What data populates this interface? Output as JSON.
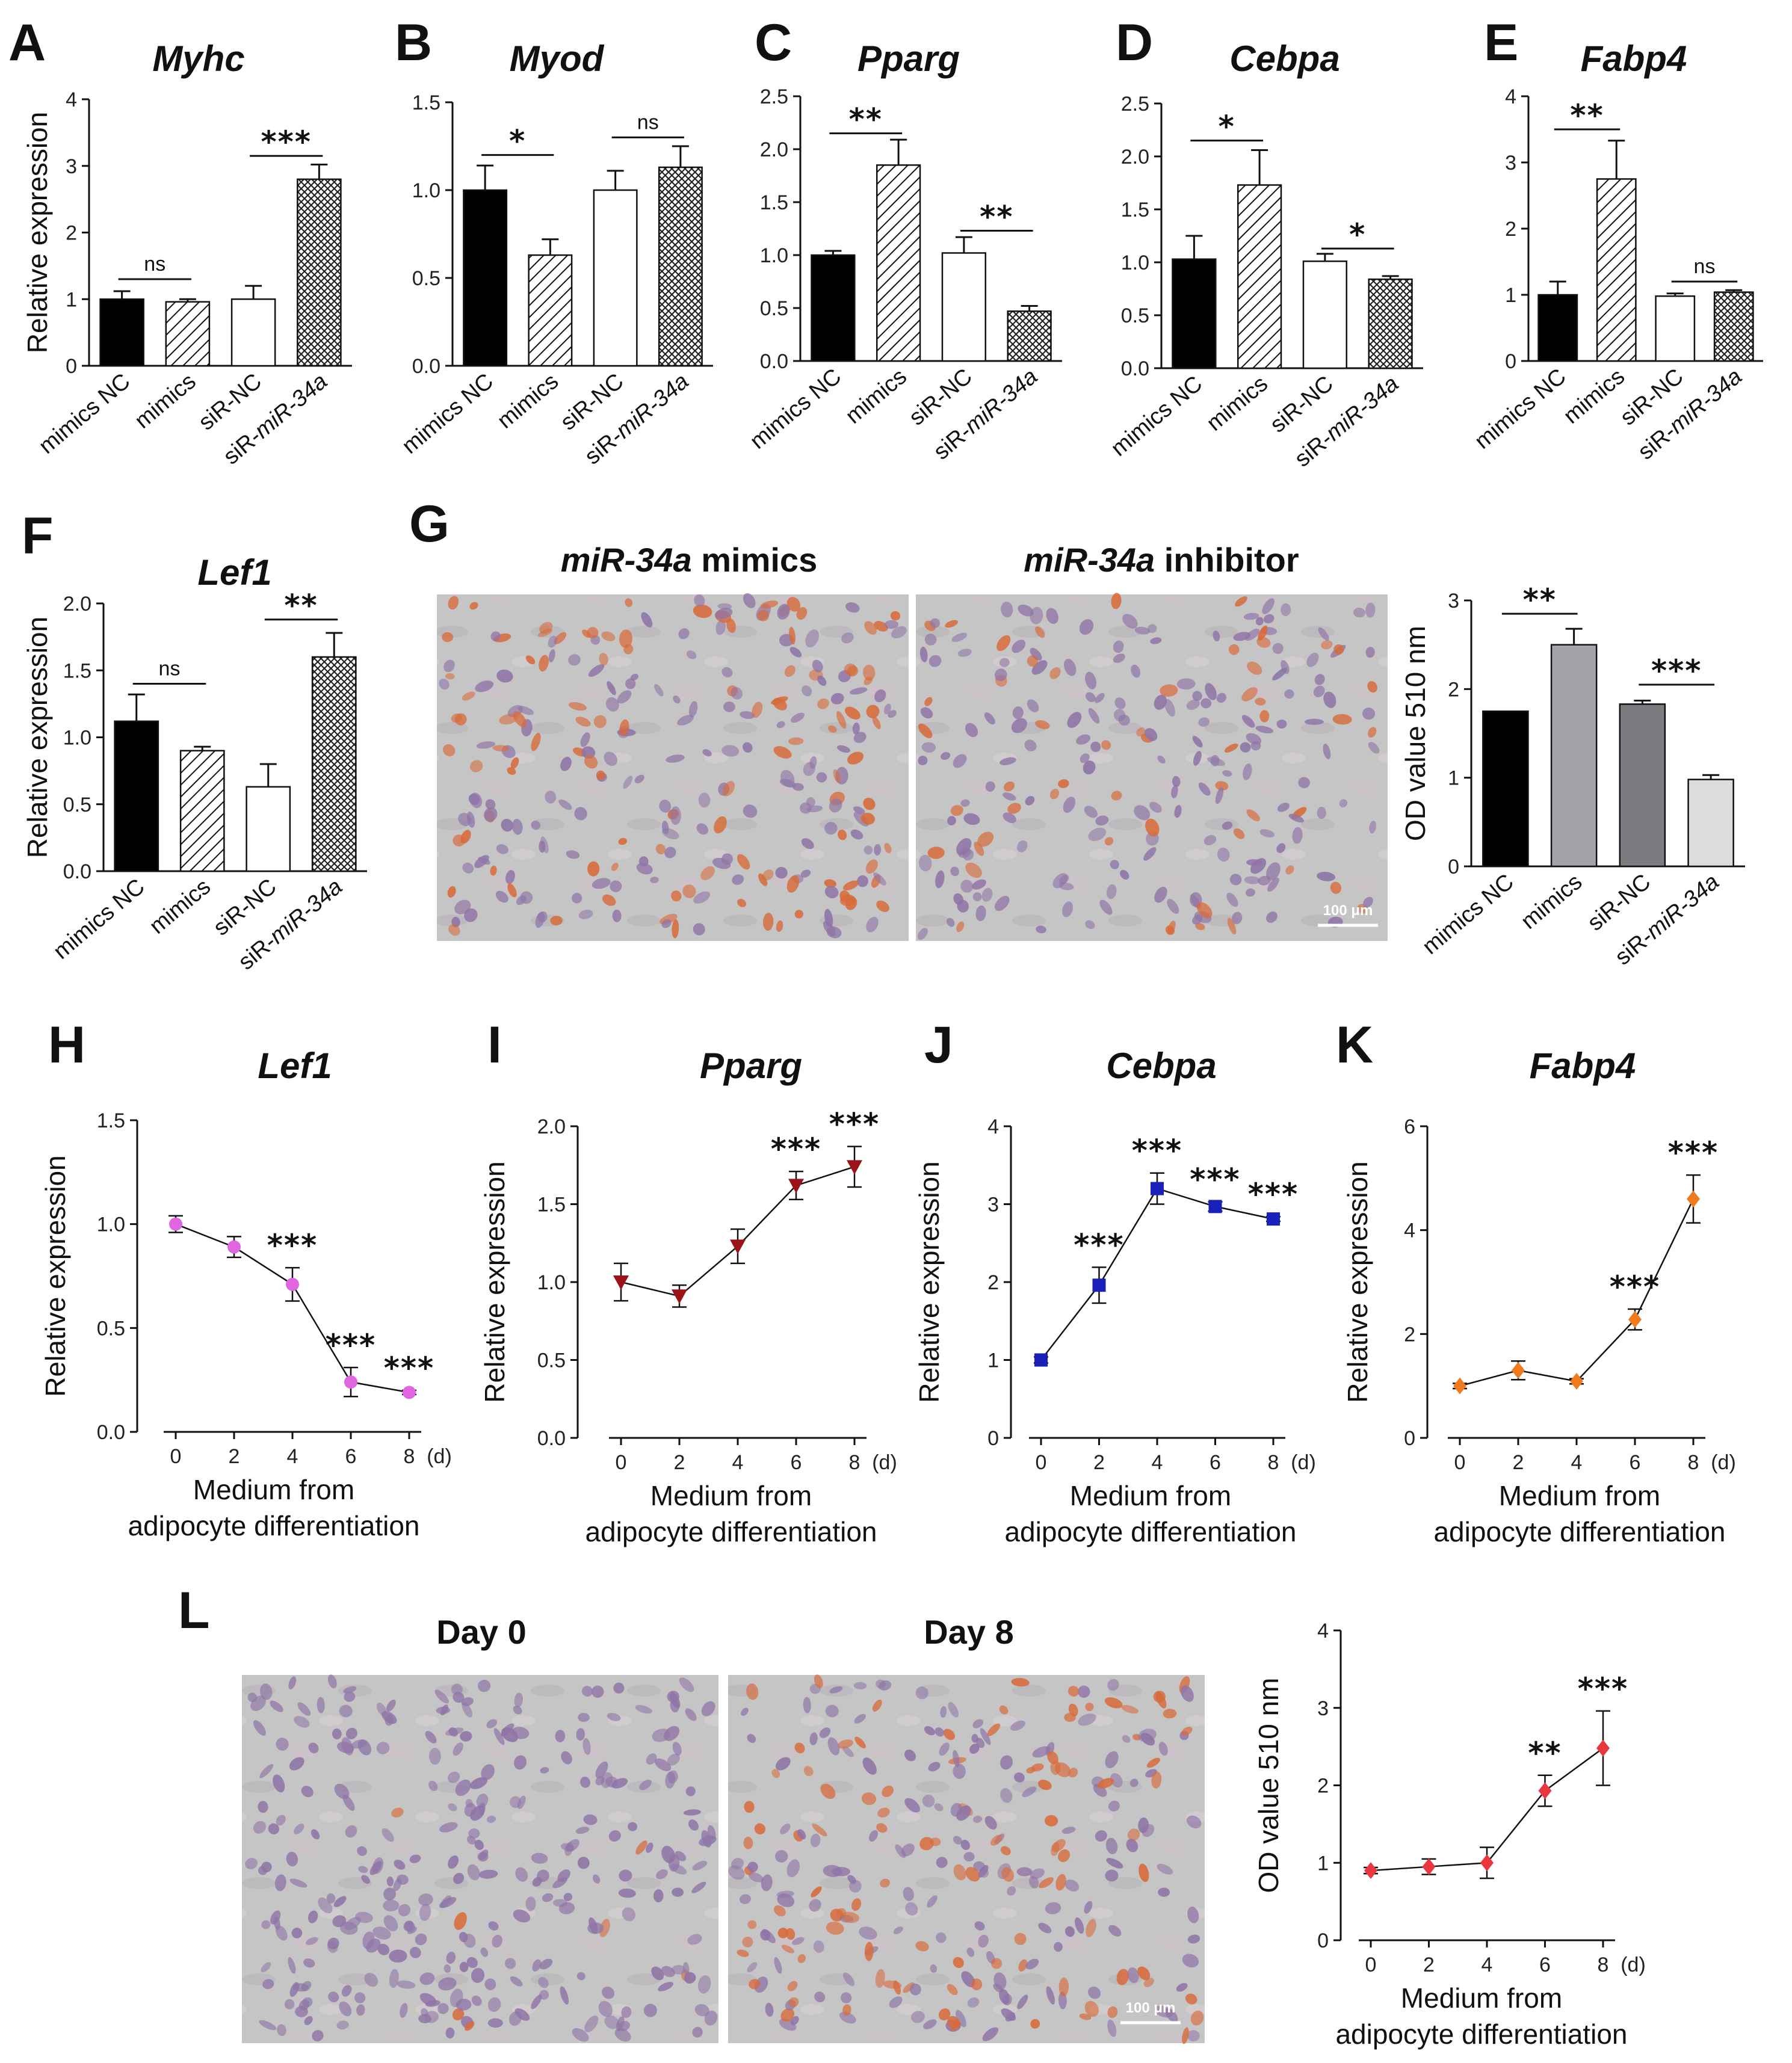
{
  "colors": {
    "bar_mimics_nc": "#000000",
    "bar_sirnc": "#ffffff",
    "od_mimics": "#a3a3aa",
    "od_sirnc": "#7c7c80",
    "od_sir34a": "#dcdcdc",
    "lef1_line": "#e066e0",
    "pparg_line": "#9b1218",
    "cebpa_line": "#1a21b8",
    "fabp4_line": "#f07a1e",
    "od_line": "#e8383d",
    "micro_bg": "#c9c9c9",
    "nuclei": "#8f74a6",
    "lipid": "#d86a3a"
  },
  "labels": {
    "ylabel_rel": "Relative expression",
    "ylabel_od": "OD value 510 nm",
    "xlabel_line1": "Medium from",
    "xlabel_line2": "adipocyte differentiation",
    "day_unit": "(d)",
    "scale_bar_g": "100 μm",
    "scale_bar_l": "100 μm"
  },
  "panels": {
    "A": {
      "letter": "A",
      "title": "Myhc"
    },
    "B": {
      "letter": "B",
      "title": "Myod"
    },
    "C": {
      "letter": "C",
      "title": "Pparg"
    },
    "D": {
      "letter": "D",
      "title": "Cebpa"
    },
    "E": {
      "letter": "E",
      "title": "Fabp4"
    },
    "F": {
      "letter": "F",
      "title": "Lef1"
    },
    "G": {
      "letter": "G",
      "img1_italic": "miR-34a",
      "img1_rest": " mimics",
      "img2_italic": "miR-34a",
      "img2_rest": " inhibitor"
    },
    "H": {
      "letter": "H",
      "title": "Lef1"
    },
    "I": {
      "letter": "I",
      "title": "Pparg"
    },
    "J": {
      "letter": "J",
      "title": "Cebpa"
    },
    "K": {
      "letter": "K",
      "title": "Fabp4"
    },
    "L": {
      "letter": "L",
      "img1": "Day 0",
      "img2": "Day 8"
    }
  },
  "chart_data": [
    {
      "id": "A",
      "type": "bar",
      "title": "Myhc",
      "ylabel": "Relative expression",
      "ylim": [
        0,
        4
      ],
      "yticks": [
        0,
        1,
        2,
        3,
        4
      ],
      "categories": [
        "mimics NC",
        "mimics",
        "siR-NC",
        "siR-miR-34a"
      ],
      "values": [
        1.0,
        0.96,
        1.0,
        2.8
      ],
      "errors": [
        0.12,
        0.04,
        0.2,
        0.22
      ],
      "annotations": [
        {
          "pair": [
            0,
            1
          ],
          "y": 1.3,
          "text": "ns"
        },
        {
          "pair": [
            2,
            3
          ],
          "y": 3.15,
          "text": "***"
        }
      ]
    },
    {
      "id": "B",
      "type": "bar",
      "title": "Myod",
      "ylabel": "",
      "ylim": [
        0,
        1.5
      ],
      "yticks": [
        "0.0",
        "0.5",
        "1.0",
        "1.5"
      ],
      "categories": [
        "mimics NC",
        "mimics",
        "siR-NC",
        "siR-miR-34a"
      ],
      "values": [
        1.0,
        0.63,
        1.0,
        1.13
      ],
      "errors": [
        0.14,
        0.09,
        0.11,
        0.12
      ],
      "annotations": [
        {
          "pair": [
            0,
            1
          ],
          "y": 1.2,
          "text": "*"
        },
        {
          "pair": [
            2,
            3
          ],
          "y": 1.3,
          "text": "ns"
        }
      ]
    },
    {
      "id": "C",
      "type": "bar",
      "title": "Pparg",
      "ylabel": "",
      "ylim": [
        0,
        2.5
      ],
      "yticks": [
        "0.0",
        "0.5",
        "1.0",
        "1.5",
        "2.0",
        "2.5"
      ],
      "categories": [
        "mimics NC",
        "mimics",
        "siR-NC",
        "siR-miR-34a"
      ],
      "values": [
        1.0,
        1.85,
        1.02,
        0.47
      ],
      "errors": [
        0.04,
        0.24,
        0.15,
        0.05
      ],
      "annotations": [
        {
          "pair": [
            0,
            1
          ],
          "y": 2.15,
          "text": "**"
        },
        {
          "pair": [
            2,
            3
          ],
          "y": 1.23,
          "text": "**"
        }
      ]
    },
    {
      "id": "D",
      "type": "bar",
      "title": "Cebpa",
      "ylabel": "",
      "ylim": [
        0,
        2.5
      ],
      "yticks": [
        "0.0",
        "0.5",
        "1.0",
        "1.5",
        "2.0",
        "2.5"
      ],
      "categories": [
        "mimics NC",
        "mimics",
        "siR-NC",
        "siR-miR-34a"
      ],
      "values": [
        1.03,
        1.73,
        1.01,
        0.84
      ],
      "errors": [
        0.22,
        0.33,
        0.07,
        0.03
      ],
      "annotations": [
        {
          "pair": [
            0,
            1
          ],
          "y": 2.15,
          "text": "*"
        },
        {
          "pair": [
            2,
            3
          ],
          "y": 1.13,
          "text": "*"
        }
      ]
    },
    {
      "id": "E",
      "type": "bar",
      "title": "Fabp4",
      "ylabel": "",
      "ylim": [
        0,
        4
      ],
      "yticks": [
        0,
        1,
        2,
        3,
        4
      ],
      "categories": [
        "mimics NC",
        "mimics",
        "siR-NC",
        "siR-miR-34a"
      ],
      "values": [
        1.0,
        2.75,
        0.98,
        1.04
      ],
      "errors": [
        0.2,
        0.58,
        0.04,
        0.03
      ],
      "annotations": [
        {
          "pair": [
            0,
            1
          ],
          "y": 3.5,
          "text": "**"
        },
        {
          "pair": [
            2,
            3
          ],
          "y": 1.2,
          "text": "ns"
        }
      ]
    },
    {
      "id": "F",
      "type": "bar",
      "title": "Lef1",
      "ylabel": "Relative expression",
      "ylim": [
        0,
        2.0
      ],
      "yticks": [
        "0.0",
        "0.5",
        "1.0",
        "1.5",
        "2.0"
      ],
      "categories": [
        "mimics NC",
        "mimics",
        "siR-NC",
        "siR-miR-34a"
      ],
      "values": [
        1.12,
        0.9,
        0.63,
        1.6
      ],
      "errors": [
        0.2,
        0.03,
        0.17,
        0.18
      ],
      "annotations": [
        {
          "pair": [
            0,
            1
          ],
          "y": 1.4,
          "text": "ns"
        },
        {
          "pair": [
            2,
            3
          ],
          "y": 1.88,
          "text": "**"
        }
      ]
    },
    {
      "id": "G",
      "type": "bar",
      "title": "",
      "ylabel": "OD value 510 nm",
      "ylim": [
        0,
        3
      ],
      "yticks": [
        0,
        1,
        2,
        3
      ],
      "categories": [
        "mimics NC",
        "mimics",
        "siR-NC",
        "siR-miR-34a"
      ],
      "values": [
        1.75,
        2.5,
        1.83,
        0.98
      ],
      "errors": [
        0,
        0.18,
        0.04,
        0.05
      ],
      "annotations": [
        {
          "pair": [
            0,
            1
          ],
          "y": 2.85,
          "text": "**"
        },
        {
          "pair": [
            2,
            3
          ],
          "y": 2.05,
          "text": "***"
        }
      ]
    },
    {
      "id": "H",
      "type": "line",
      "title": "Lef1",
      "ylabel": "Relative expression",
      "xlabel": "Medium from adipocyte differentiation",
      "x": [
        0,
        2,
        4,
        6,
        8
      ],
      "values": [
        1.0,
        0.89,
        0.71,
        0.24,
        0.19
      ],
      "errors": [
        0.04,
        0.05,
        0.08,
        0.07,
        0.01
      ],
      "ylim": [
        0,
        1.5
      ],
      "yticks": [
        "0.0",
        "0.5",
        "1.0",
        "1.5"
      ],
      "marker": "circle",
      "stars": [
        {
          "i": 2,
          "text": "***"
        },
        {
          "i": 3,
          "text": "***"
        },
        {
          "i": 4,
          "text": "***"
        }
      ]
    },
    {
      "id": "I",
      "type": "line",
      "title": "Pparg",
      "ylabel": "Relative expression",
      "xlabel": "Medium from adipocyte differentiation",
      "x": [
        0,
        2,
        4,
        6,
        8
      ],
      "values": [
        1.0,
        0.91,
        1.23,
        1.62,
        1.74
      ],
      "errors": [
        0.12,
        0.07,
        0.11,
        0.09,
        0.13
      ],
      "ylim": [
        0,
        2.0
      ],
      "yticks": [
        "0.0",
        "0.5",
        "1.0",
        "1.5",
        "2.0"
      ],
      "marker": "triangle-down",
      "stars": [
        {
          "i": 3,
          "text": "***"
        },
        {
          "i": 4,
          "text": "***"
        }
      ]
    },
    {
      "id": "J",
      "type": "line",
      "title": "Cebpa",
      "ylabel": "Relative expression",
      "xlabel": "Medium from adipocyte differentiation",
      "x": [
        0,
        2,
        4,
        6,
        8
      ],
      "values": [
        1.0,
        1.96,
        3.2,
        2.97,
        2.81
      ],
      "errors": [
        0.04,
        0.23,
        0.2,
        0.06,
        0.03
      ],
      "ylim": [
        0,
        4
      ],
      "yticks": [
        0,
        1,
        2,
        3,
        4
      ],
      "marker": "square",
      "stars": [
        {
          "i": 1,
          "text": "***"
        },
        {
          "i": 2,
          "text": "***"
        },
        {
          "i": 3,
          "text": "***"
        },
        {
          "i": 4,
          "text": "***"
        }
      ]
    },
    {
      "id": "K",
      "type": "line",
      "title": "Fabp4",
      "ylabel": "Relative expression",
      "xlabel": "Medium from adipocyte differentiation",
      "x": [
        0,
        2,
        4,
        6,
        8
      ],
      "values": [
        1.0,
        1.3,
        1.09,
        2.28,
        4.6
      ],
      "errors": [
        0.05,
        0.18,
        0.05,
        0.2,
        0.46
      ],
      "ylim": [
        0,
        6
      ],
      "yticks": [
        0,
        2,
        4,
        6
      ],
      "marker": "diamond",
      "stars": [
        {
          "i": 3,
          "text": "***"
        },
        {
          "i": 4,
          "text": "***"
        }
      ]
    },
    {
      "id": "L",
      "type": "line",
      "title": "",
      "ylabel": "OD value 510 nm",
      "xlabel": "Medium from adipocyte differentiation",
      "x": [
        0,
        2,
        4,
        6,
        8
      ],
      "values": [
        0.9,
        0.95,
        1.0,
        1.93,
        2.48
      ],
      "errors": [
        0.04,
        0.1,
        0.2,
        0.2,
        0.48
      ],
      "ylim": [
        0,
        4
      ],
      "yticks": [
        0,
        1,
        2,
        3,
        4
      ],
      "marker": "diamond",
      "stars": [
        {
          "i": 3,
          "text": "**"
        },
        {
          "i": 4,
          "text": "***"
        }
      ]
    }
  ]
}
